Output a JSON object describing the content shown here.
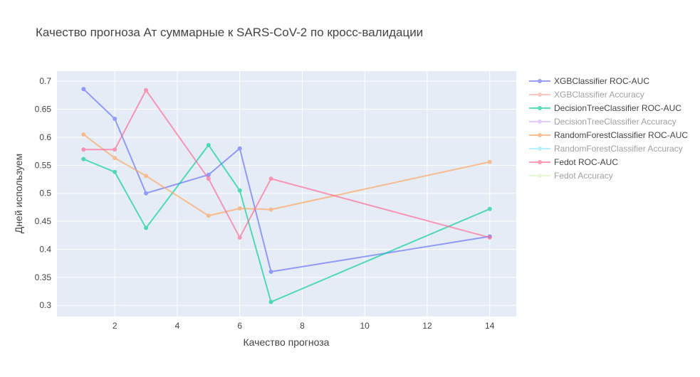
{
  "chart_data": {
    "type": "line",
    "title": "Качество прогноза Ат суммарные к SARS-CoV-2 по кросс-валидации",
    "xlabel": "Качество прогноза",
    "ylabel": "Дней используем",
    "xlim": [
      0.15,
      14.85
    ],
    "ylim": [
      0.28,
      0.718
    ],
    "xticks": [
      2,
      4,
      6,
      8,
      10,
      12,
      14
    ],
    "yticks": [
      0.3,
      0.35,
      0.4,
      0.45,
      0.5,
      0.55,
      0.6,
      0.65,
      0.7
    ],
    "xtick_labels": [
      "2",
      "4",
      "6",
      "8",
      "10",
      "12",
      "14"
    ],
    "ytick_labels": [
      "0.3",
      "0.35",
      "0.4",
      "0.45",
      "0.5",
      "0.55",
      "0.6",
      "0.65",
      "0.7"
    ],
    "grid": true,
    "legend_position": "right",
    "plot_background": "#e5ecf6",
    "series": [
      {
        "name": "XGBClassifier ROC-AUC",
        "color": "#636efa",
        "opacity": 0.65,
        "visible": true,
        "x": [
          1,
          2,
          3,
          5,
          6,
          7,
          14
        ],
        "y": [
          0.686,
          0.633,
          0.5,
          0.533,
          0.58,
          0.36,
          0.423
        ]
      },
      {
        "name": "XGBClassifier Accuracy",
        "color": "#ef553b",
        "opacity": 0.65,
        "visible": false,
        "x": [],
        "y": []
      },
      {
        "name": "DecisionTreeClassifier ROC-AUC",
        "color": "#00cc96",
        "opacity": 0.65,
        "visible": true,
        "x": [
          1,
          2,
          3,
          5,
          6,
          7,
          14
        ],
        "y": [
          0.561,
          0.538,
          0.438,
          0.586,
          0.505,
          0.306,
          0.472
        ]
      },
      {
        "name": "DecisionTreeClassifier Accuracy",
        "color": "#ab63fa",
        "opacity": 0.65,
        "visible": false,
        "x": [],
        "y": []
      },
      {
        "name": "RandomForestClassifier ROC-AUC",
        "color": "#ffa15a",
        "opacity": 0.65,
        "visible": true,
        "x": [
          1,
          2,
          3,
          5,
          6,
          7,
          14
        ],
        "y": [
          0.605,
          0.563,
          0.531,
          0.46,
          0.473,
          0.471,
          0.556
        ]
      },
      {
        "name": "RandomForestClassifier Accuracy",
        "color": "#19d3f3",
        "opacity": 0.65,
        "visible": false,
        "x": [],
        "y": []
      },
      {
        "name": "Fedot ROC-AUC",
        "color": "#ff6692",
        "opacity": 0.65,
        "visible": true,
        "x": [
          1,
          2,
          3,
          5,
          6,
          7,
          14
        ],
        "y": [
          0.578,
          0.578,
          0.684,
          0.526,
          0.421,
          0.526,
          0.421
        ]
      },
      {
        "name": "Fedot Accuracy",
        "color": "#b6e880",
        "opacity": 0.65,
        "visible": false,
        "x": [],
        "y": []
      }
    ]
  }
}
